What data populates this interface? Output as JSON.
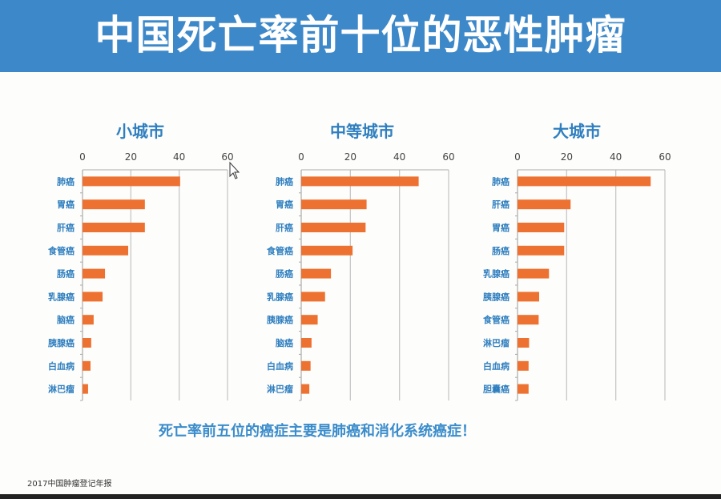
{
  "title": "中国死亡率前十位的恶性肿瘤",
  "conclusion": "死亡率前五位的癌症主要是肺癌和消化系统癌症！",
  "source": "2017中国肿瘤登记年报",
  "colors": {
    "banner": "#3d88c9",
    "bar": "#ed7130",
    "label": "#2f7fc0",
    "grid": "#c8c8c8"
  },
  "chart_data": [
    {
      "type": "bar",
      "orientation": "horizontal",
      "title": "小城市",
      "categories": [
        "肺癌",
        "胃癌",
        "肝癌",
        "食管癌",
        "肠癌",
        "乳腺癌",
        "脑癌",
        "胰腺癌",
        "白血病",
        "淋巴瘤"
      ],
      "values": [
        40.4,
        25.8,
        25.8,
        18.9,
        9.3,
        8.3,
        4.6,
        3.6,
        3.3,
        2.3
      ],
      "xlim": [
        0,
        60
      ],
      "xticks": [
        "0",
        "20",
        "40",
        "60"
      ],
      "grid": true,
      "axis_position": "top"
    },
    {
      "type": "bar",
      "orientation": "horizontal",
      "title": "中等城市",
      "categories": [
        "肺癌",
        "胃癌",
        "肝癌",
        "食管癌",
        "肠癌",
        "乳腺癌",
        "胰腺癌",
        "脑癌",
        "白血病",
        "淋巴瘤"
      ],
      "values": [
        47.8,
        26.6,
        26.2,
        20.9,
        12.1,
        9.7,
        6.7,
        4.2,
        3.8,
        3.3
      ],
      "xlim": [
        0,
        60
      ],
      "xticks": [
        "0",
        "20",
        "40",
        "60"
      ],
      "grid": true,
      "axis_position": "top"
    },
    {
      "type": "bar",
      "orientation": "horizontal",
      "title": "大城市",
      "categories": [
        "肺癌",
        "肝癌",
        "胃癌",
        "肠癌",
        "乳腺癌",
        "胰腺癌",
        "食管癌",
        "淋巴瘤",
        "白血病",
        "胆囊癌"
      ],
      "values": [
        54.2,
        21.6,
        19.0,
        19.0,
        12.8,
        8.8,
        8.6,
        4.7,
        4.5,
        4.5
      ],
      "xlim": [
        0,
        60
      ],
      "xticks": [
        "0",
        "20",
        "40",
        "60"
      ],
      "grid": true,
      "axis_position": "top"
    }
  ]
}
